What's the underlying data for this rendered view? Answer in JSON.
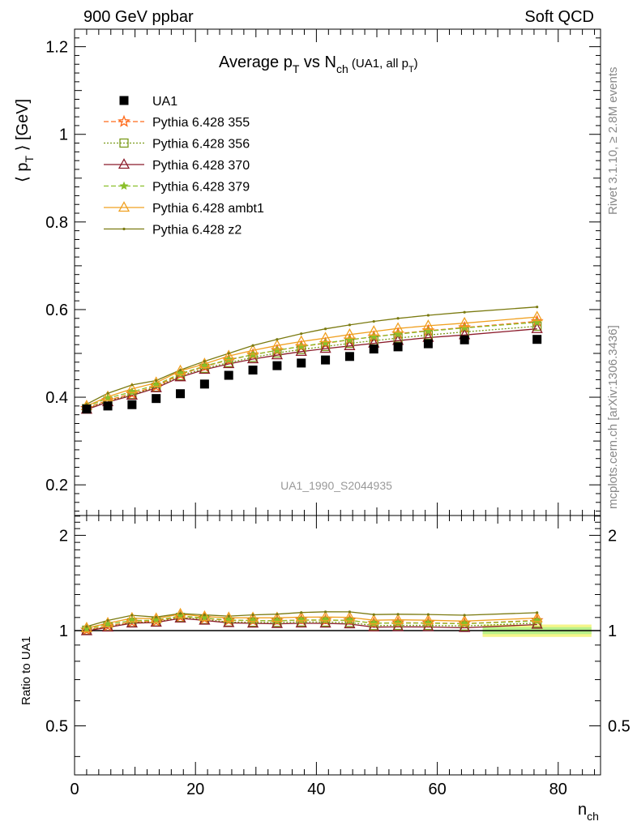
{
  "header": {
    "left": "900 GeV ppbar",
    "right": "Soft QCD"
  },
  "side": {
    "rivet": "Rivet 3.1.10, ≥ 2.8M events",
    "mcplots": "mcplots.cern.ch [arXiv:1306.3436]"
  },
  "colors": {
    "data": "#000000",
    "p355": "#ff6a1a",
    "p356": "#7a9a1a",
    "p370": "#8b1a2a",
    "p379": "#8abf2a",
    "ambt1": "#f0a020",
    "z2": "#7a7a10",
    "band_yellow": "#f5f58a",
    "band_green": "#b8f08a"
  },
  "chart_data": [
    {
      "type": "scatter",
      "title_main": "Average p",
      "title_sub_T": "T",
      "title_vs": " vs N",
      "title_sub_ch": "ch",
      "title_tail": " (UA1, all p",
      "title_tail_sub": "T",
      "title_tail_end": ")",
      "ylabel": "⟨ p",
      "ylabel_sub": "T",
      "ylabel_tail": " ⟩ [GeV]",
      "watermark": "UA1_1990_S2044935",
      "xlim": [
        0,
        87
      ],
      "ylim": [
        0.13,
        1.24
      ],
      "yticks": [
        0.2,
        0.4,
        0.6,
        0.8,
        1,
        1.2
      ],
      "ytick_labels": [
        "0.2",
        "0.4",
        "0.6",
        "0.8",
        "1",
        "1.2"
      ],
      "x": [
        2,
        5.5,
        9.5,
        13.5,
        17.5,
        21.5,
        25.5,
        29.5,
        33.5,
        37.5,
        41.5,
        45.5,
        49.5,
        53.5,
        58.5,
        64.5,
        76.5
      ],
      "data_label": "UA1",
      "data_values": [
        0.373,
        0.38,
        0.383,
        0.397,
        0.408,
        0.43,
        0.45,
        0.462,
        0.472,
        0.478,
        0.485,
        0.493,
        0.51,
        0.515,
        0.522,
        0.531,
        0.532
      ],
      "series": [
        {
          "name": "Pythia 6.428 355",
          "key": "p355",
          "marker": "star",
          "dash": "dashed",
          "values": [
            0.375,
            0.393,
            0.408,
            0.425,
            0.452,
            0.47,
            0.485,
            0.497,
            0.507,
            0.516,
            0.523,
            0.531,
            0.538,
            0.545,
            0.552,
            0.559,
            0.573
          ]
        },
        {
          "name": "Pythia 6.428 356",
          "key": "p356",
          "marker": "square",
          "dash": "dotted",
          "values": [
            0.374,
            0.391,
            0.406,
            0.423,
            0.449,
            0.466,
            0.479,
            0.491,
            0.501,
            0.509,
            0.516,
            0.523,
            0.529,
            0.535,
            0.542,
            0.549,
            0.562
          ]
        },
        {
          "name": "Pythia 6.428 370",
          "key": "p370",
          "marker": "triangle-open",
          "dash": "solid",
          "values": [
            0.372,
            0.389,
            0.404,
            0.421,
            0.446,
            0.463,
            0.476,
            0.487,
            0.496,
            0.504,
            0.511,
            0.517,
            0.523,
            0.529,
            0.536,
            0.542,
            0.556
          ]
        },
        {
          "name": "Pythia 6.428 379",
          "key": "p379",
          "marker": "star-small",
          "dash": "dashed",
          "values": [
            0.378,
            0.398,
            0.412,
            0.428,
            0.454,
            0.471,
            0.486,
            0.497,
            0.507,
            0.516,
            0.524,
            0.531,
            0.538,
            0.544,
            0.551,
            0.558,
            0.571
          ]
        },
        {
          "name": "Pythia 6.428 ambt1",
          "key": "ambt1",
          "marker": "triangle-open",
          "dash": "solid",
          "values": [
            0.38,
            0.401,
            0.419,
            0.433,
            0.46,
            0.476,
            0.494,
            0.507,
            0.518,
            0.527,
            0.535,
            0.543,
            0.55,
            0.557,
            0.563,
            0.569,
            0.583
          ]
        },
        {
          "name": "Pythia 6.428 z2",
          "key": "z2",
          "marker": "dot",
          "dash": "solid",
          "values": [
            0.384,
            0.409,
            0.428,
            0.438,
            0.462,
            0.482,
            0.5,
            0.518,
            0.532,
            0.545,
            0.556,
            0.565,
            0.573,
            0.58,
            0.587,
            0.594,
            0.606
          ]
        }
      ]
    },
    {
      "type": "line",
      "ylabel": "Ratio to UA1",
      "xlabel": "n",
      "xlabel_sub": "ch",
      "xlim": [
        0,
        87
      ],
      "ylim": [
        0.35,
        2.31
      ],
      "xticks": [
        0,
        20,
        40,
        60,
        80
      ],
      "xtick_labels": [
        "0",
        "20",
        "40",
        "60",
        "80"
      ],
      "yticks": [
        0.5,
        1,
        2
      ],
      "ytick_labels": [
        "0.5",
        "1",
        "2"
      ],
      "reference": 1,
      "band": {
        "x_range": [
          67.5,
          85.5
        ],
        "yellow": [
          0.955,
          1.045
        ],
        "green": [
          0.975,
          1.025
        ]
      }
    }
  ]
}
